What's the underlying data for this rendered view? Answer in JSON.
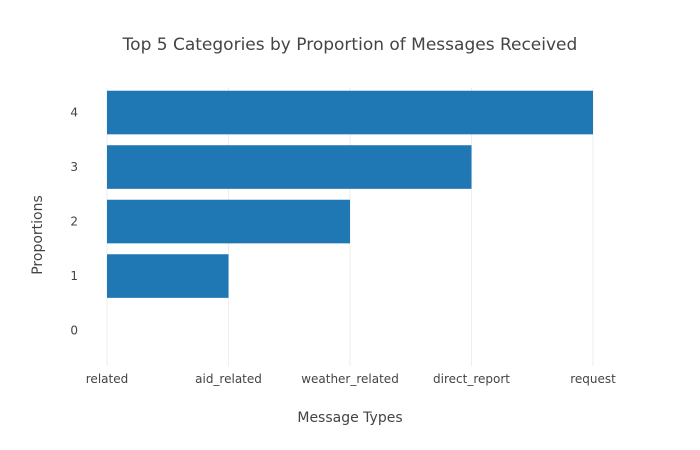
{
  "chart_data": {
    "type": "bar",
    "orientation": "horizontal",
    "title": "Top 5 Categories by Proportion of Messages Received",
    "xlabel": "Message Types",
    "ylabel": "Proportions",
    "x_categories": [
      "related",
      "aid_related",
      "weather_related",
      "direct_report",
      "request"
    ],
    "y_ticks": [
      0,
      1,
      2,
      3,
      4
    ],
    "ylim": [
      -0.65,
      4.45
    ],
    "series": [
      {
        "color": "#1f77b4",
        "bars": [
          {
            "y": 1,
            "x": "aid_related"
          },
          {
            "y": 2,
            "x": "weather_related"
          },
          {
            "y": 3,
            "x": "direct_report"
          },
          {
            "y": 4,
            "x": "request"
          }
        ]
      }
    ],
    "grid": {
      "vertical": true,
      "horizontal": false
    },
    "legend": "none"
  }
}
